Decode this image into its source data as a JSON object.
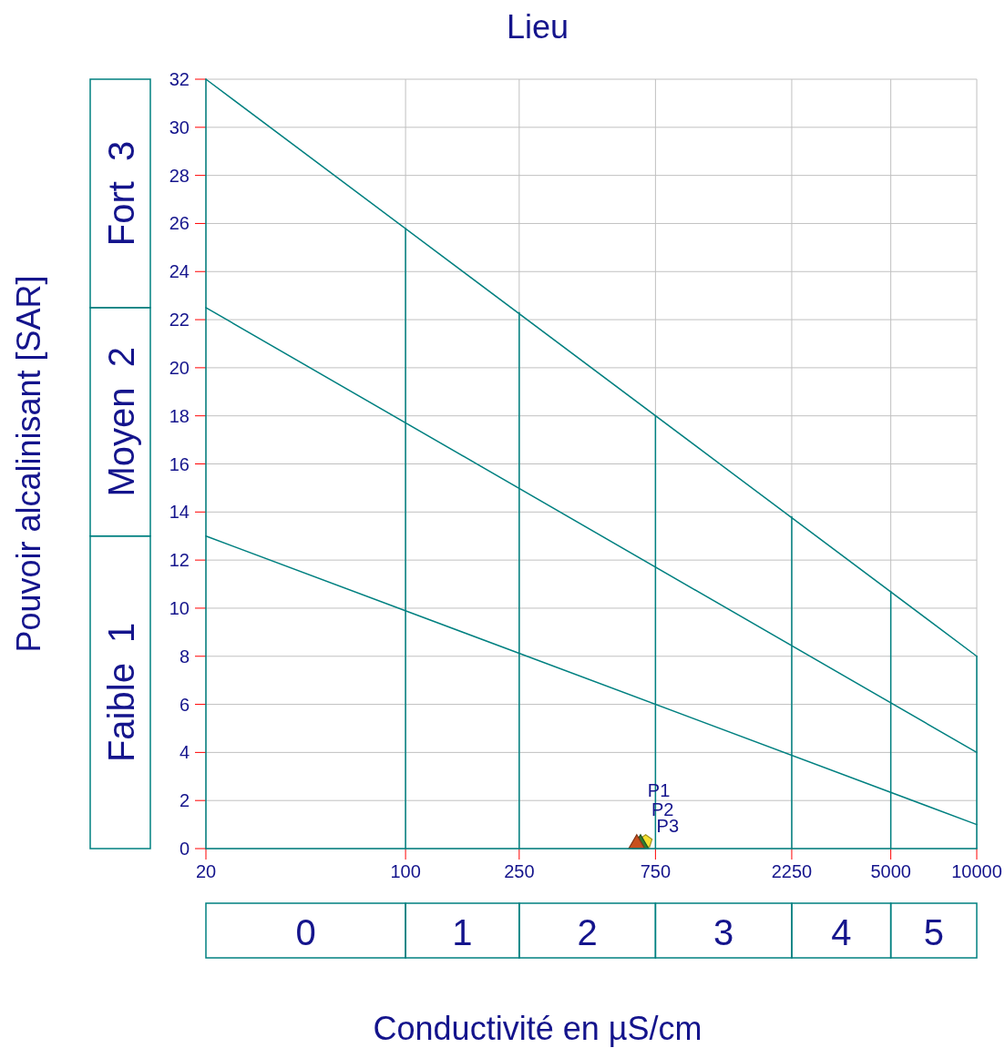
{
  "chart_data": {
    "type": "line",
    "title": "Lieu",
    "xlabel": "Conductivité en µS/cm",
    "ylabel": "Pouvoir alcalinisant [SAR]",
    "log": "x",
    "grid": true,
    "legend": false,
    "line_style": "solid",
    "xlim": [
      20,
      10000
    ],
    "xticks": [
      20,
      100,
      250,
      750,
      2250,
      5000,
      10000
    ],
    "ylim": [
      0,
      32
    ],
    "yticks": [
      0,
      2,
      4,
      6,
      8,
      10,
      12,
      14,
      16,
      18,
      20,
      22,
      24,
      26,
      28,
      30,
      32
    ],
    "series": [
      {
        "color": "#008080",
        "x": [
          20,
          10000
        ],
        "values": [
          32,
          8
        ]
      },
      {
        "color": "#008080",
        "x": [
          20,
          10000
        ],
        "values": [
          22.5,
          4
        ]
      },
      {
        "color": "#008080",
        "x": [
          20,
          10000
        ],
        "values": [
          13,
          1
        ]
      },
      {
        "color": "#008080",
        "x": [
          20,
          20
        ],
        "values": [
          0,
          32
        ]
      },
      {
        "color": "#008080",
        "x": [
          20,
          10000
        ],
        "values": [
          0,
          0
        ]
      },
      {
        "color": "#008080",
        "x": [
          100,
          100
        ],
        "values": [
          0,
          25.8
        ]
      },
      {
        "color": "#008080",
        "x": [
          250,
          250
        ],
        "values": [
          0,
          22.3
        ]
      },
      {
        "color": "#008080",
        "x": [
          750,
          750
        ],
        "values": [
          0,
          18
        ]
      },
      {
        "color": "#008080",
        "x": [
          2250,
          2250
        ],
        "values": [
          0,
          13.8
        ]
      },
      {
        "color": "#008080",
        "x": [
          5000,
          5000
        ],
        "values": [
          0,
          10.7
        ]
      },
      {
        "color": "#008080",
        "x": [
          10000,
          10000
        ],
        "values": [
          0,
          8
        ]
      },
      {
        "type": "scatter",
        "name": "P1",
        "color": "#c8501e",
        "marker": "triangle",
        "x": [
          645
        ],
        "values": [
          0.2
        ]
      },
      {
        "type": "scatter",
        "name": "P2",
        "color": "#2e7d32",
        "marker": "triangle",
        "x": [
          665
        ],
        "values": [
          0.2
        ]
      },
      {
        "type": "scatter",
        "name": "P3",
        "color": "#f5e030",
        "x": [
          693
        ],
        "values": [
          0.3
        ]
      }
    ],
    "annotations": [
      "Faible  1",
      "Moyen  2",
      "Fort  3",
      "0",
      "1",
      "2",
      "3",
      "4",
      "5"
    ]
  }
}
